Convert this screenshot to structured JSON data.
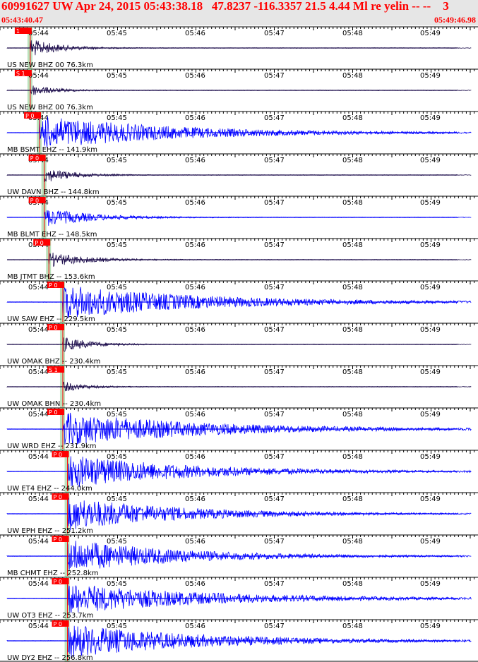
{
  "header": {
    "title": "60991627 UW Apr 24, 2015 05:43:38.18   47.8237 -116.3357 21.5 4.44 Ml re yelin -- --    3",
    "start_time": "05:43:40.47",
    "end_time": "05:49:46.98"
  },
  "time_ticks": [
    "05:44",
    "05:45",
    "05:46",
    "05:47",
    "05:48",
    "05:49"
  ],
  "colors": {
    "header_text": "#ff0000",
    "trace_blue": "#0000ff",
    "trace_dark": "#1a0a4a",
    "pick_red": "#ff0000",
    "window_green": "#8fcf8f"
  },
  "traces": [
    {
      "label": "US NEW BHZ 00 76.3km",
      "pick": "1",
      "color": "dark",
      "amp": 0.55,
      "onset": 0.05,
      "decay": 0.06
    },
    {
      "label": "US NEW BHZ 00 76.3km",
      "pick": "S 1",
      "color": "dark",
      "amp": 0.35,
      "onset": 0.05,
      "decay": 0.05
    },
    {
      "label": "MB BSMT EHZ -- 141.9km",
      "pick": "P 0",
      "color": "blue",
      "amp": 1.0,
      "onset": 0.07,
      "decay": 0.28
    },
    {
      "label": "UW DAVN BHZ -- 144.8km",
      "pick": "P 0",
      "color": "dark",
      "amp": 0.45,
      "onset": 0.08,
      "decay": 0.06
    },
    {
      "label": "MB BLMT EHZ -- 148.5km",
      "pick": "P 0",
      "color": "blue",
      "amp": 0.55,
      "onset": 0.08,
      "decay": 0.1
    },
    {
      "label": "MB JTMT BHZ -- 153.6km",
      "pick": "P 0",
      "color": "dark",
      "amp": 0.45,
      "onset": 0.09,
      "decay": 0.08
    },
    {
      "label": "UW SAW EHZ -- 229.5km",
      "pick": "P 0",
      "color": "blue",
      "amp": 1.0,
      "onset": 0.12,
      "decay": 0.3
    },
    {
      "label": "UW OMAK BHZ -- 230.4km",
      "pick": "P 0",
      "color": "dark",
      "amp": 0.45,
      "onset": 0.12,
      "decay": 0.06
    },
    {
      "label": "UW OMAK BHN -- 230.4km",
      "pick": "S 1",
      "color": "dark",
      "amp": 0.3,
      "onset": 0.12,
      "decay": 0.05
    },
    {
      "label": "UW WRD EHZ -- 231.9km",
      "pick": "P 0",
      "color": "blue",
      "amp": 1.0,
      "onset": 0.12,
      "decay": 0.3
    },
    {
      "label": "UW ET4 EHZ -- 244.0km",
      "pick": "P 0",
      "color": "blue",
      "amp": 1.0,
      "onset": 0.13,
      "decay": 0.26
    },
    {
      "label": "UW EPH EHZ -- 251.2km",
      "pick": "P 0",
      "color": "blue",
      "amp": 1.0,
      "onset": 0.13,
      "decay": 0.24
    },
    {
      "label": "MB CHMT EHZ -- 252.8km",
      "pick": "P 0",
      "color": "blue",
      "amp": 1.0,
      "onset": 0.13,
      "decay": 0.24
    },
    {
      "label": "UW OT3 EHZ -- 253.7km",
      "pick": "P 0",
      "color": "blue",
      "amp": 0.9,
      "onset": 0.13,
      "decay": 0.3
    },
    {
      "label": "UW DY2 EHZ -- 256.8km",
      "pick": "P 0",
      "color": "blue",
      "amp": 1.0,
      "onset": 0.13,
      "decay": 0.28
    }
  ]
}
